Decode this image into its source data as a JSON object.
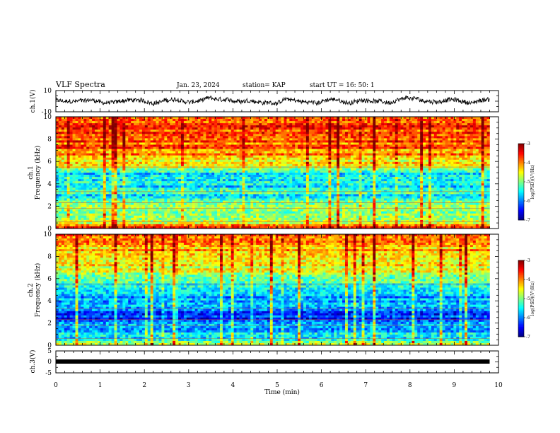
{
  "header": {
    "title": "VLF Spectra",
    "date": "Jan. 23, 2024",
    "station": "station= KAP",
    "start": "start UT =  16: 50: 1"
  },
  "chart_data": [
    {
      "type": "line",
      "name": "ch1-waveform",
      "ylabel": "ch.1(V)",
      "ylim": [
        -10,
        10
      ],
      "yticks": [
        "10",
        "-10"
      ],
      "x_range_min": [
        0,
        9.8
      ],
      "series": [
        {
          "color": "#000000",
          "level": 0,
          "noise_amplitude": 4
        }
      ]
    },
    {
      "type": "heatmap",
      "name": "ch1-spectrogram",
      "ylabel": "ch.1\nFrequency (kHz)",
      "ylabel_line1": "ch.1",
      "ylabel_line2": "Frequency (kHz)",
      "ylim": [
        0,
        10
      ],
      "yticks": [
        "0",
        "2",
        "4",
        "6",
        "8",
        "10"
      ],
      "x_range_min": [
        0,
        9.8
      ],
      "colorbar": {
        "label": "log(PSD)(V²/Hz)",
        "range": [
          -7,
          -3
        ],
        "ticks": [
          "-3",
          "-4",
          "-5",
          "-6",
          "-7"
        ]
      },
      "bands_khz_logpsd": [
        [
          0,
          -3.4
        ],
        [
          0.6,
          -4.9
        ],
        [
          1.5,
          -5.0
        ],
        [
          2.5,
          -5.2
        ],
        [
          3.0,
          -5.4
        ],
        [
          4.0,
          -5.6
        ],
        [
          5.0,
          -5.5
        ],
        [
          5.5,
          -4.6
        ],
        [
          6.5,
          -4.1
        ],
        [
          8.0,
          -3.8
        ],
        [
          10.0,
          -3.6
        ]
      ]
    },
    {
      "type": "heatmap",
      "name": "ch2-spectrogram",
      "ylabel": "ch.2\nFrequency (kHz)",
      "ylabel_line1": "ch.2",
      "ylabel_line2": "Frequency (kHz)",
      "ylim": [
        0,
        10
      ],
      "yticks": [
        "0",
        "2",
        "4",
        "6",
        "8",
        "10"
      ],
      "x_range_min": [
        0,
        9.8
      ],
      "colorbar": {
        "label": "log(PSD)(V²/Hz)",
        "range": [
          -7,
          -3
        ],
        "ticks": [
          "-3",
          "-4",
          "-5",
          "-6",
          "-7"
        ]
      },
      "bands_khz_logpsd": [
        [
          0,
          -4.3
        ],
        [
          0.5,
          -5.4
        ],
        [
          1.5,
          -5.9
        ],
        [
          2.5,
          -6.3
        ],
        [
          3.5,
          -6.0
        ],
        [
          4.5,
          -5.7
        ],
        [
          5.5,
          -5.2
        ],
        [
          6.5,
          -4.7
        ],
        [
          8.0,
          -4.3
        ],
        [
          10.0,
          -4.0
        ]
      ]
    },
    {
      "type": "line",
      "name": "ch3-waveform",
      "ylabel": "ch.3(V)",
      "ylim": [
        -5,
        5
      ],
      "yticks": [
        "5",
        "0",
        "-5"
      ],
      "x_range_min": [
        0,
        9.8
      ],
      "series": [
        {
          "color": "#000000",
          "level": -0.5,
          "noise_amplitude": 0.3
        }
      ]
    }
  ],
  "xaxis": {
    "label": "Time (min)",
    "range": [
      0,
      10
    ],
    "ticks": [
      "0",
      "1",
      "2",
      "3",
      "4",
      "5",
      "6",
      "7",
      "8",
      "9",
      "10"
    ]
  }
}
